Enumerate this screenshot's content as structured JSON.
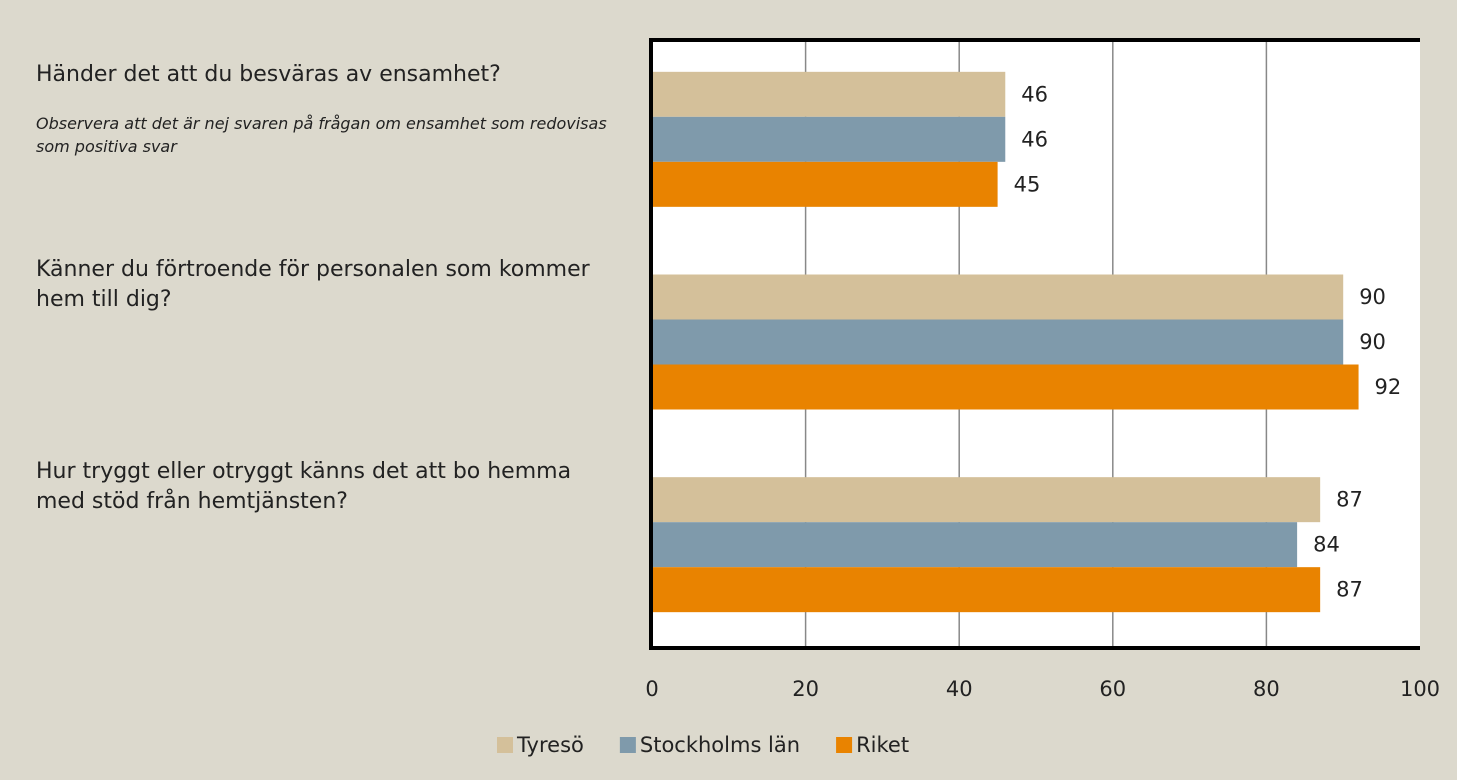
{
  "chart_data": {
    "type": "bar",
    "orientation": "horizontal",
    "categories": [
      "Händer det att du besväras av ensamhet?",
      "Känner du förtroende för personalen som kommer hem till dig?",
      "Hur tryggt eller otryggt känns det att bo hemma med stöd från hemtjänsten?"
    ],
    "annotation": "Observera att det är nej svaren på frågan om ensamhet som redovisas som positiva svar",
    "series": [
      {
        "name": "Tyresö",
        "color": "#d4c09a",
        "values": [
          46,
          90,
          87
        ]
      },
      {
        "name": "Stockholms län",
        "color": "#7f9aab",
        "values": [
          46,
          90,
          84
        ]
      },
      {
        "name": "Riket",
        "color": "#e98300",
        "values": [
          45,
          92,
          87
        ]
      }
    ],
    "xlim": [
      0,
      100
    ],
    "xticks": [
      0,
      20,
      40,
      60,
      80,
      100
    ],
    "grid": true,
    "legend": "bottom"
  }
}
